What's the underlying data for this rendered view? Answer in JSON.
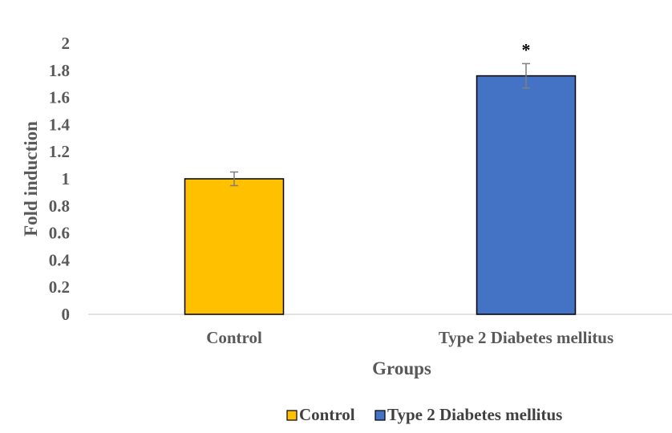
{
  "chart_data": {
    "type": "bar",
    "categories": [
      "Control",
      "Type 2 Diabetes mellitus"
    ],
    "values": [
      1.0,
      1.76
    ],
    "errors": [
      0.05,
      0.09
    ],
    "colors": [
      "#FFC000",
      "#4472C4"
    ],
    "annotations": [
      "",
      "*"
    ],
    "xlabel": "Groups",
    "ylabel": "Fold induction",
    "ylim": [
      0,
      2
    ],
    "yticks": [
      "0",
      "0.2",
      "0.4",
      "0.6",
      "0.8",
      "1",
      "1.2",
      "1.4",
      "1.6",
      "1.8",
      "2"
    ],
    "ytick_values": [
      0,
      0.2,
      0.4,
      0.6,
      0.8,
      1,
      1.2,
      1.4,
      1.6,
      1.8,
      2
    ],
    "grid": false,
    "legend": {
      "position": "bottom",
      "entries": [
        "Control",
        "Type 2 Diabetes mellitus"
      ]
    }
  }
}
